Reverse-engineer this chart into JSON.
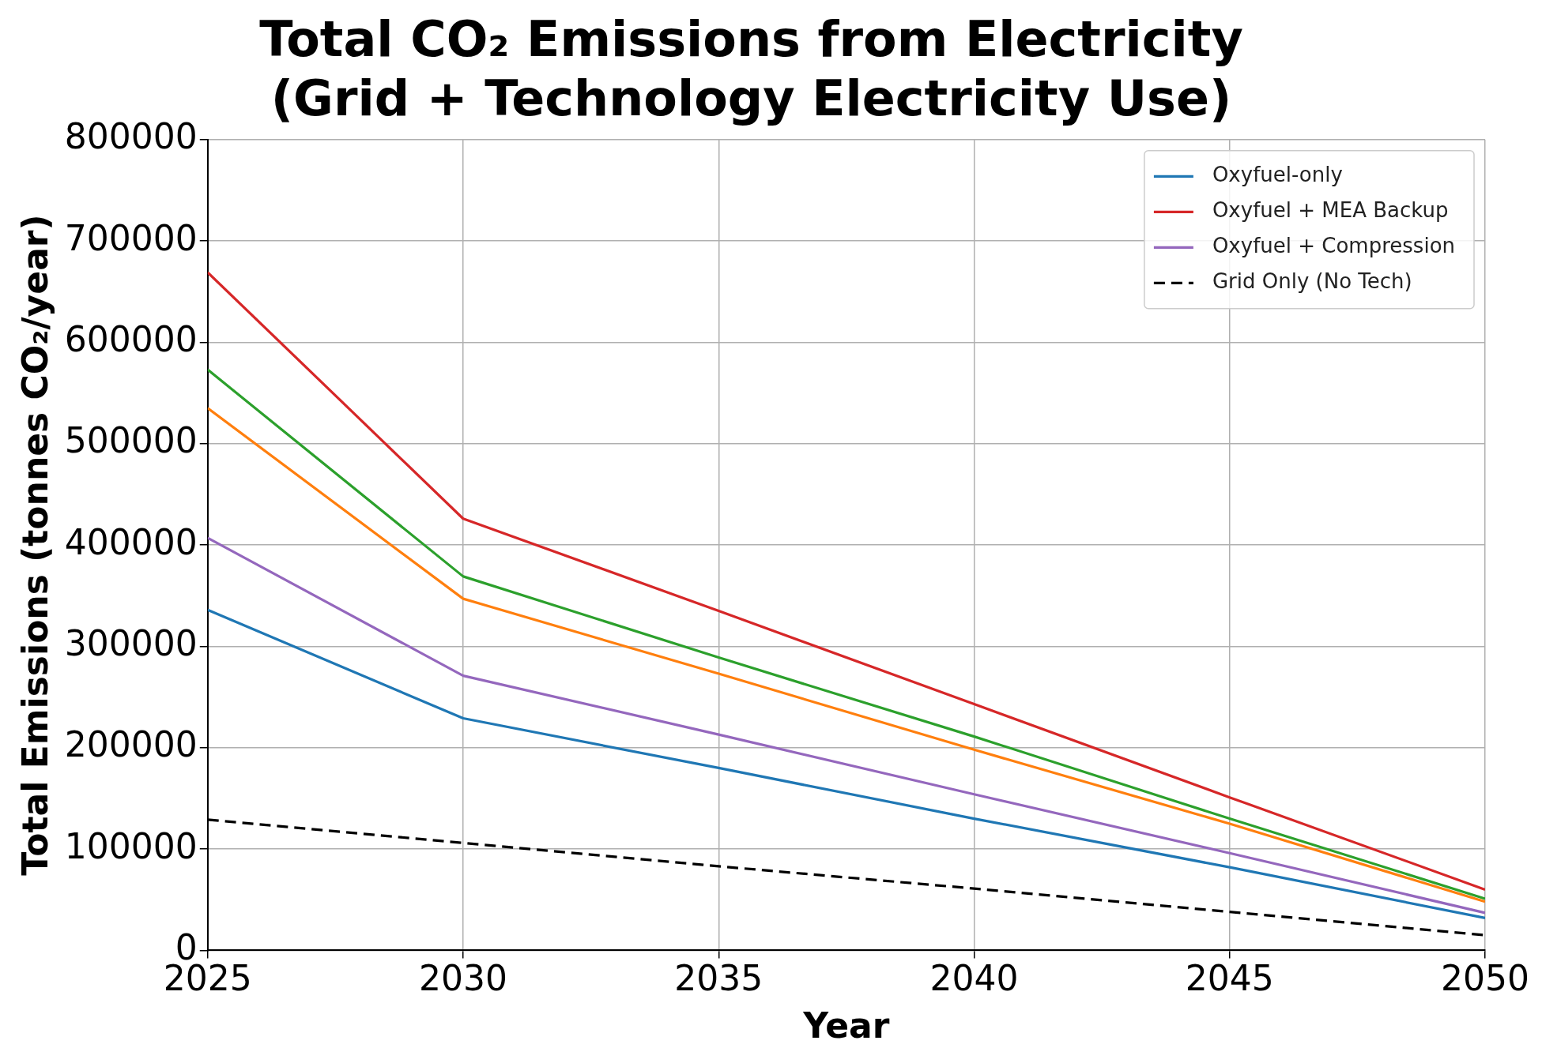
{
  "chart_data": {
    "type": "line",
    "title": "Total CO₂ Emissions from Electricity\n(Grid + Technology Electricity Use)",
    "xlabel": "Year",
    "ylabel": "Total Emissions (tonnes CO₂/year)",
    "x": [
      2025,
      2030,
      2035,
      2040,
      2045,
      2050
    ],
    "xlim": [
      2025,
      2050
    ],
    "xticks": [
      2025,
      2030,
      2035,
      2040,
      2045,
      2050
    ],
    "ylim": [
      0,
      800000
    ],
    "yticks": [
      0,
      100000,
      200000,
      300000,
      400000,
      500000,
      600000,
      700000,
      800000
    ],
    "grid": true,
    "legend": "top right",
    "marker": "none",
    "series": [
      {
        "name": "Oxyfuel-only",
        "color": "#1f77b4",
        "values": [
          336000,
          229000,
          180000,
          130000,
          82000,
          32000
        ]
      },
      {
        "color": "#ff7f0e",
        "values": [
          535000,
          347000,
          273000,
          198000,
          125000,
          48000
        ]
      },
      {
        "color": "#2ca02c",
        "values": [
          573000,
          369000,
          289000,
          211000,
          130000,
          51000
        ]
      },
      {
        "name": "Oxyfuel + MEA Backup",
        "color": "#d62728",
        "values": [
          669000,
          426000,
          335000,
          243000,
          151000,
          60000
        ]
      },
      {
        "name": "Oxyfuel + Compression",
        "color": "#9467bd",
        "values": [
          407000,
          271000,
          213000,
          154000,
          96000,
          37000
        ]
      },
      {
        "name": "Grid Only (No Tech)",
        "color": "#000000",
        "line_style": "dashed",
        "values": [
          129000,
          106000,
          83000,
          61000,
          38000,
          15000
        ]
      }
    ]
  }
}
